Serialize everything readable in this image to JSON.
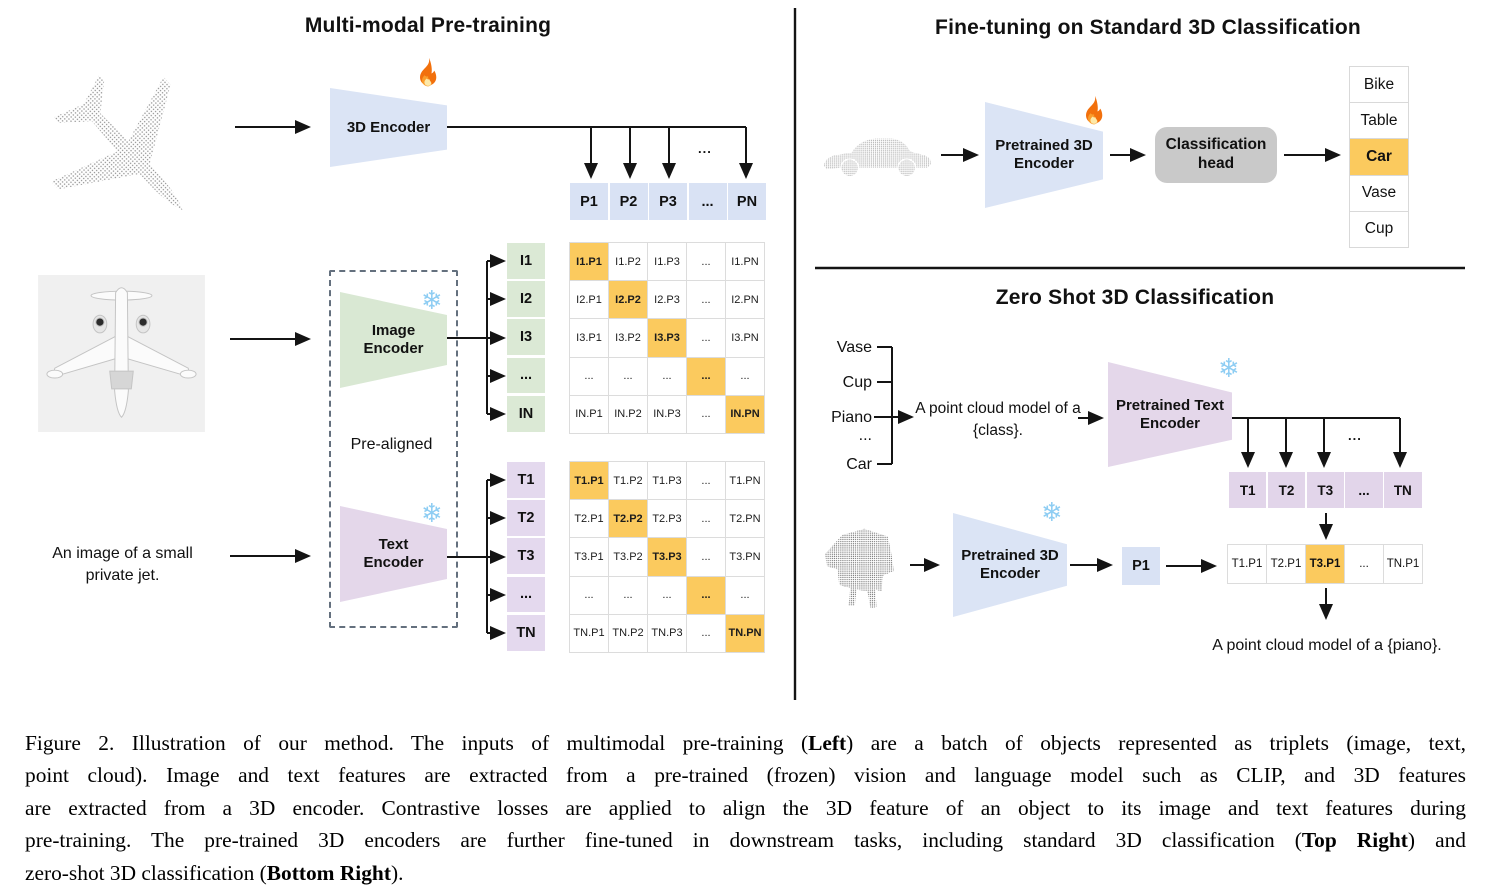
{
  "left": {
    "title": "Multi-modal Pre-training",
    "encoder3d_label": "3D Encoder",
    "image_encoder_label": "Image Encoder",
    "text_encoder_label": "Text Encoder",
    "pre_aligned_label": "Pre-aligned",
    "text_input": "An image of a small private jet.",
    "dots": "...",
    "p_row": [
      "P1",
      "P2",
      "P3",
      "...",
      "PN"
    ],
    "i_labels": [
      "I1",
      "I2",
      "I3",
      "...",
      "IN"
    ],
    "i_matrix": [
      [
        {
          "t": "I1.P1",
          "hl": true
        },
        "I1.P2",
        "I1.P3",
        "...",
        "I1.PN"
      ],
      [
        "I2.P1",
        {
          "t": "I2.P2",
          "hl": true
        },
        "I2.P3",
        "...",
        "I2.PN"
      ],
      [
        "I3.P1",
        "I3.P2",
        {
          "t": "I3.P3",
          "hl": true
        },
        "...",
        "I3.PN"
      ],
      [
        "...",
        "...",
        "...",
        {
          "t": "...",
          "hl": true
        },
        "..."
      ],
      [
        "IN.P1",
        "IN.P2",
        "IN.P3",
        "...",
        {
          "t": "IN.PN",
          "hl": true
        }
      ]
    ],
    "t_labels": [
      "T1",
      "T2",
      "T3",
      "...",
      "TN"
    ],
    "t_matrix": [
      [
        {
          "t": "T1.P1",
          "hl": true
        },
        "T1.P2",
        "T1.P3",
        "...",
        "T1.PN"
      ],
      [
        "T2.P1",
        {
          "t": "T2.P2",
          "hl": true
        },
        "T2.P3",
        "...",
        "T2.PN"
      ],
      [
        "T3.P1",
        "T3.P2",
        {
          "t": "T3.P3",
          "hl": true
        },
        "...",
        "T3.PN"
      ],
      [
        "...",
        "...",
        "...",
        {
          "t": "...",
          "hl": true
        },
        "..."
      ],
      [
        "TN.P1",
        "TN.P2",
        "TN.P3",
        "...",
        {
          "t": "TN.PN",
          "hl": true
        }
      ]
    ]
  },
  "top_right": {
    "title": "Fine-tuning on Standard 3D Classification",
    "encoder_label": "Pretrained 3D Encoder",
    "head_label": "Classification head",
    "classes": [
      "Bike",
      "Table",
      {
        "t": "Car",
        "hl": true
      },
      "Vase",
      "Cup"
    ]
  },
  "bottom_right": {
    "title": "Zero Shot 3D Classification",
    "class_vase": "Vase",
    "class_cup": "Cup",
    "class_piano": "Piano",
    "class_dots": "...",
    "class_car": "Car",
    "prompt": "A point cloud model of a {class}.",
    "text_encoder_label": "Pretrained Text Encoder",
    "encoder3d_label": "Pretrained 3D Encoder",
    "p1_label": "P1",
    "dots": "...",
    "t_row": [
      "T1",
      "T2",
      "T3",
      "...",
      "TN"
    ],
    "result_row": [
      "T1.P1",
      "T2.P1",
      {
        "t": "T3.P1",
        "hl": true
      },
      "...",
      "TN.P1"
    ],
    "result_caption": "A point cloud model of a {piano}."
  },
  "caption": {
    "lines": [
      [
        {
          "t": "Figure 2. Illustration of our method.  The inputs of multimodal pre-training ("
        },
        {
          "t": "Left",
          "b": true
        },
        {
          "t": ") are a batch of objects represented as triplets (image, text,"
        }
      ],
      [
        {
          "t": "point cloud).  Image and text features are extracted from a pre-trained (frozen) vision and language model such as CLIP, and 3D features"
        }
      ],
      [
        {
          "t": "are extracted from a 3D encoder.  Contrastive losses are applied to align the 3D feature of an object to its image and text features during"
        }
      ],
      [
        {
          "t": "pre-training.  The pre-trained 3D encoders are further fine-tuned in downstream tasks, including standard 3D classification ("
        },
        {
          "t": "Top Right",
          "b": true
        },
        {
          "t": ") and"
        }
      ],
      [
        {
          "t": "zero-shot 3D classification ("
        },
        {
          "t": "Bottom Right",
          "b": true
        },
        {
          "t": ")."
        }
      ]
    ]
  },
  "icons": {
    "trainable": "fire-icon",
    "frozen": "snowflake-icon",
    "snowflake_glyph": "❄"
  },
  "colors": {
    "accent_blue": "#d9e2f4",
    "accent_green": "#d9e8d3",
    "accent_purple": "#e4d7ea",
    "highlight_orange": "#fbca5e",
    "head_gray": "#c9c9c9"
  }
}
